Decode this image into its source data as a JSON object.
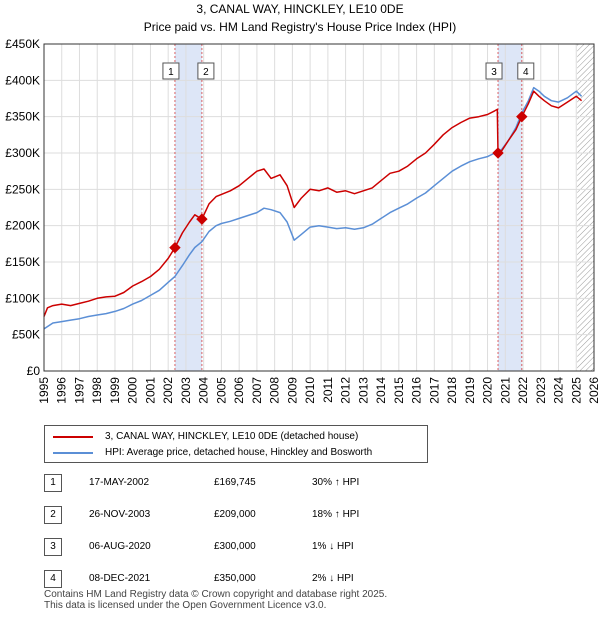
{
  "chart_data": {
    "type": "line",
    "title": "3, CANAL WAY, HINCKLEY, LE10 0DE",
    "subtitle": "Price paid vs. HM Land Registry's House Price Index (HPI)",
    "xlabel": "",
    "ylabel": "",
    "xlim": [
      1995,
      2026
    ],
    "ylim": [
      0,
      450000
    ],
    "x_ticks": [
      "1995",
      "1996",
      "1997",
      "1998",
      "1999",
      "2000",
      "2001",
      "2002",
      "2003",
      "2004",
      "2005",
      "2006",
      "2007",
      "2008",
      "2009",
      "2010",
      "2011",
      "2012",
      "2013",
      "2014",
      "2015",
      "2016",
      "2017",
      "2018",
      "2019",
      "2020",
      "2021",
      "2022",
      "2023",
      "2024",
      "2025",
      "2026"
    ],
    "y_ticks": [
      {
        "value": 0,
        "label": "£0"
      },
      {
        "value": 50000,
        "label": "£50K"
      },
      {
        "value": 100000,
        "label": "£100K"
      },
      {
        "value": 150000,
        "label": "£150K"
      },
      {
        "value": 200000,
        "label": "£200K"
      },
      {
        "value": 250000,
        "label": "£250K"
      },
      {
        "value": 300000,
        "label": "£300K"
      },
      {
        "value": 350000,
        "label": "£350K"
      },
      {
        "value": 400000,
        "label": "£400K"
      },
      {
        "value": 450000,
        "label": "£450K"
      }
    ],
    "grid": true,
    "colors": {
      "property": "#cc0000",
      "hpi": "#5b8fd6",
      "shade": "#dde6f7",
      "marker_line": "#cc0000",
      "hatch": "#999999"
    },
    "series": [
      {
        "name": "3, CANAL WAY, HINCKLEY, LE10 0DE (detached house)",
        "color": "#cc0000",
        "points": [
          [
            1995.0,
            75000
          ],
          [
            1995.2,
            87000
          ],
          [
            1995.5,
            90000
          ],
          [
            1996.0,
            92000
          ],
          [
            1996.5,
            90000
          ],
          [
            1997.0,
            93000
          ],
          [
            1997.5,
            96000
          ],
          [
            1998.0,
            100000
          ],
          [
            1998.5,
            102000
          ],
          [
            1999.0,
            103000
          ],
          [
            1999.5,
            108000
          ],
          [
            2000.0,
            117000
          ],
          [
            2000.5,
            123000
          ],
          [
            2001.0,
            130000
          ],
          [
            2001.5,
            140000
          ],
          [
            2002.0,
            155000
          ],
          [
            2002.38,
            169745
          ],
          [
            2002.8,
            190000
          ],
          [
            2003.2,
            205000
          ],
          [
            2003.5,
            215000
          ],
          [
            2003.9,
            209000
          ],
          [
            2004.3,
            230000
          ],
          [
            2004.7,
            240000
          ],
          [
            2005.0,
            243000
          ],
          [
            2005.5,
            248000
          ],
          [
            2006.0,
            255000
          ],
          [
            2006.5,
            265000
          ],
          [
            2007.0,
            275000
          ],
          [
            2007.4,
            278000
          ],
          [
            2007.8,
            265000
          ],
          [
            2008.3,
            270000
          ],
          [
            2008.7,
            255000
          ],
          [
            2009.1,
            225000
          ],
          [
            2009.5,
            238000
          ],
          [
            2010.0,
            250000
          ],
          [
            2010.5,
            248000
          ],
          [
            2011.0,
            252000
          ],
          [
            2011.5,
            246000
          ],
          [
            2012.0,
            248000
          ],
          [
            2012.5,
            244000
          ],
          [
            2013.0,
            248000
          ],
          [
            2013.5,
            252000
          ],
          [
            2014.0,
            262000
          ],
          [
            2014.5,
            272000
          ],
          [
            2015.0,
            275000
          ],
          [
            2015.5,
            282000
          ],
          [
            2016.0,
            292000
          ],
          [
            2016.5,
            300000
          ],
          [
            2017.0,
            312000
          ],
          [
            2017.5,
            325000
          ],
          [
            2018.0,
            335000
          ],
          [
            2018.5,
            342000
          ],
          [
            2019.0,
            348000
          ],
          [
            2019.5,
            350000
          ],
          [
            2020.0,
            353000
          ],
          [
            2020.4,
            358000
          ],
          [
            2020.55,
            360000
          ],
          [
            2020.59,
            300000
          ],
          [
            2020.8,
            303000
          ],
          [
            2021.2,
            318000
          ],
          [
            2021.6,
            332000
          ],
          [
            2021.93,
            350000
          ],
          [
            2022.3,
            368000
          ],
          [
            2022.6,
            385000
          ],
          [
            2022.9,
            378000
          ],
          [
            2023.2,
            372000
          ],
          [
            2023.6,
            365000
          ],
          [
            2024.0,
            362000
          ],
          [
            2024.5,
            370000
          ],
          [
            2025.0,
            378000
          ],
          [
            2025.3,
            372000
          ]
        ]
      },
      {
        "name": "HPI: Average price, detached house, Hinckley and Bosworth",
        "color": "#5b8fd6",
        "points": [
          [
            1995.0,
            58000
          ],
          [
            1995.5,
            66000
          ],
          [
            1996.0,
            68000
          ],
          [
            1996.5,
            70000
          ],
          [
            1997.0,
            72000
          ],
          [
            1997.5,
            75000
          ],
          [
            1998.0,
            77000
          ],
          [
            1998.5,
            79000
          ],
          [
            1999.0,
            82000
          ],
          [
            1999.5,
            86000
          ],
          [
            2000.0,
            92000
          ],
          [
            2000.5,
            97000
          ],
          [
            2001.0,
            104000
          ],
          [
            2001.5,
            111000
          ],
          [
            2002.0,
            122000
          ],
          [
            2002.38,
            130000
          ],
          [
            2002.8,
            145000
          ],
          [
            2003.2,
            160000
          ],
          [
            2003.5,
            170000
          ],
          [
            2003.9,
            178000
          ],
          [
            2004.3,
            192000
          ],
          [
            2004.7,
            200000
          ],
          [
            2005.0,
            203000
          ],
          [
            2005.5,
            206000
          ],
          [
            2006.0,
            210000
          ],
          [
            2006.5,
            214000
          ],
          [
            2007.0,
            218000
          ],
          [
            2007.4,
            224000
          ],
          [
            2007.8,
            222000
          ],
          [
            2008.3,
            218000
          ],
          [
            2008.7,
            205000
          ],
          [
            2009.1,
            180000
          ],
          [
            2009.5,
            188000
          ],
          [
            2010.0,
            198000
          ],
          [
            2010.5,
            200000
          ],
          [
            2011.0,
            198000
          ],
          [
            2011.5,
            196000
          ],
          [
            2012.0,
            197000
          ],
          [
            2012.5,
            195000
          ],
          [
            2013.0,
            197000
          ],
          [
            2013.5,
            202000
          ],
          [
            2014.0,
            210000
          ],
          [
            2014.5,
            218000
          ],
          [
            2015.0,
            224000
          ],
          [
            2015.5,
            230000
          ],
          [
            2016.0,
            238000
          ],
          [
            2016.5,
            245000
          ],
          [
            2017.0,
            255000
          ],
          [
            2017.5,
            265000
          ],
          [
            2018.0,
            275000
          ],
          [
            2018.5,
            282000
          ],
          [
            2019.0,
            288000
          ],
          [
            2019.5,
            292000
          ],
          [
            2020.0,
            295000
          ],
          [
            2020.59,
            302000
          ],
          [
            2020.8,
            305000
          ],
          [
            2021.2,
            318000
          ],
          [
            2021.6,
            335000
          ],
          [
            2021.93,
            355000
          ],
          [
            2022.3,
            372000
          ],
          [
            2022.6,
            390000
          ],
          [
            2022.9,
            385000
          ],
          [
            2023.2,
            378000
          ],
          [
            2023.6,
            372000
          ],
          [
            2024.0,
            370000
          ],
          [
            2024.5,
            376000
          ],
          [
            2025.0,
            385000
          ],
          [
            2025.3,
            378000
          ]
        ]
      }
    ],
    "sales": [
      {
        "id": "1",
        "x": 2002.38,
        "value": 169745
      },
      {
        "id": "2",
        "x": 2003.9,
        "value": 209000
      },
      {
        "id": "3",
        "x": 2020.59,
        "value": 300000
      },
      {
        "id": "4",
        "x": 2021.93,
        "value": 350000
      }
    ],
    "shaded_ranges": [
      [
        2002.38,
        2003.9
      ],
      [
        2020.59,
        2021.93
      ]
    ],
    "forecast_hatch_from": 2025.05
  },
  "legend": {
    "property_label": "3, CANAL WAY, HINCKLEY, LE10 0DE (detached house)",
    "hpi_label": "HPI: Average price, detached house, Hinckley and Bosworth"
  },
  "transactions": [
    {
      "num": "1",
      "date": "17-MAY-2002",
      "price": "£169,745",
      "hpi": "30% ↑ HPI"
    },
    {
      "num": "2",
      "date": "26-NOV-2003",
      "price": "£209,000",
      "hpi": "18% ↑ HPI"
    },
    {
      "num": "3",
      "date": "06-AUG-2020",
      "price": "£300,000",
      "hpi": "1% ↓ HPI"
    },
    {
      "num": "4",
      "date": "08-DEC-2021",
      "price": "£350,000",
      "hpi": "2% ↓ HPI"
    }
  ],
  "footer": {
    "line1": "Contains HM Land Registry data © Crown copyright and database right 2025.",
    "line2": "This data is licensed under the Open Government Licence v3.0."
  }
}
